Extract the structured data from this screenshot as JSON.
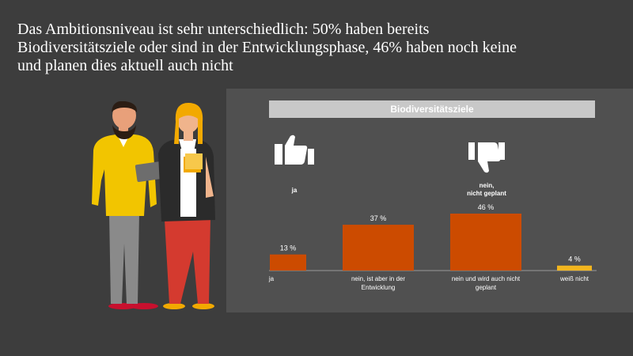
{
  "headline": {
    "line1": "Das Ambitionsniveau ist sehr unterschiedlich: 50% haben bereits",
    "line2": "Biodiversitätsziele oder sind in der Entwicklungsphase, 46% haben noch keine",
    "line3": "und planen dies aktuell auch nicht"
  },
  "panel": {
    "title": "Biodiversitätsziele",
    "thumb_up_label": "ja",
    "thumb_down_label_line1": "nein,",
    "thumb_down_label_line2": "nicht geplant"
  },
  "colors": {
    "background": "#3d3d3d",
    "panel": "#505050",
    "bar_main": "#cc4b00",
    "bar_highlight": "#f2b51f",
    "axis": "#9a9a9a"
  },
  "icons": {
    "thumb_up": "thumbs-up-icon",
    "thumb_down": "thumbs-down-icon"
  },
  "chart_data": {
    "type": "bar",
    "categories": [
      "ja",
      "nein, ist aber in der Entwicklung",
      "nein und wird auch nicht geplant",
      "weiß nicht"
    ],
    "category_label_lines": [
      [
        "ja"
      ],
      [
        "nein, ist aber in der",
        "Entwicklung"
      ],
      [
        "nein und wird auch nicht",
        "geplant"
      ],
      [
        "weiß nicht"
      ]
    ],
    "values": [
      13,
      37,
      46,
      4
    ],
    "value_labels": [
      "13 %",
      "37 %",
      "46 %",
      "4 %"
    ],
    "bar_colors": [
      "#cc4b00",
      "#cc4b00",
      "#cc4b00",
      "#f2b51f"
    ],
    "ylim": [
      0,
      50
    ],
    "title": "Biodiversitätsziele",
    "xlabel": "",
    "ylabel": "",
    "grid": false,
    "legend": "none"
  }
}
